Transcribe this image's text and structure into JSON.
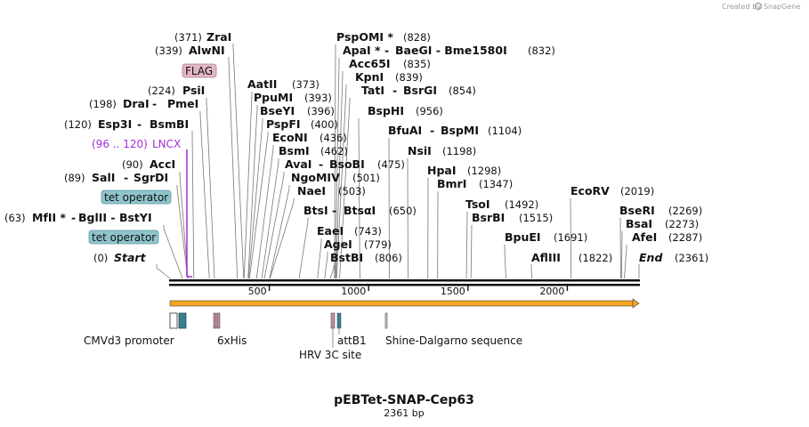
{
  "credit": {
    "created_by": "Created by",
    "brand": "SnapGene"
  },
  "title": "pEBTet-SNAP-Cep63",
  "length_label": "2361 bp",
  "total_bp": 2361,
  "axis_ticks": [
    "500",
    "1000",
    "1500",
    "2000"
  ],
  "colors": {
    "feature_box": "#8fc4cc",
    "flag_box": "#e3b7c4",
    "lncx": "#a12fd4",
    "arrow": "#f6a623",
    "pink": "#c78aa0",
    "teal": "#3c7d8c"
  },
  "sites": [
    {
      "name": "ZraI",
      "pos": "(371)",
      "bp": 371
    },
    {
      "name": "AlwNI",
      "pos": "(339)",
      "bp": 339
    },
    {
      "name": "PsiI",
      "pos": "(224)",
      "bp": 224
    },
    {
      "name": "DraI",
      "extra": "PmeI",
      "pos": "(198)",
      "bp": 198
    },
    {
      "name": "Esp3I",
      "extra": "BsmBI",
      "pos": "(120)",
      "bp": 120
    },
    {
      "name": "AccI",
      "pos": "(90)",
      "bp": 90
    },
    {
      "name": "SalI",
      "extra": "SgrDI",
      "pos": "(89)",
      "bp": 89
    },
    {
      "name": "MfII *",
      "extra": "BglII - BstYI",
      "pos": "(63)",
      "bp": 63
    },
    {
      "name": "Start",
      "pos": "(0)",
      "bp": 0
    },
    {
      "name": "AatII",
      "pos": "(373)",
      "bp": 373
    },
    {
      "name": "PpuMI",
      "pos": "(393)",
      "bp": 393
    },
    {
      "name": "BseYI",
      "pos": "(396)",
      "bp": 396
    },
    {
      "name": "PspFI",
      "pos": "(400)",
      "bp": 400
    },
    {
      "name": "EcoNI",
      "pos": "(436)",
      "bp": 436
    },
    {
      "name": "BsmI",
      "pos": "(462)",
      "bp": 462
    },
    {
      "name": "AvaI",
      "extra": "BsoBI",
      "pos": "(475)",
      "bp": 475
    },
    {
      "name": "NgoMIV",
      "pos": "(501)",
      "bp": 501
    },
    {
      "name": "NaeI",
      "pos": "(503)",
      "bp": 503
    },
    {
      "name": "BtsI",
      "extra": "BtsαI",
      "pos": "(650)",
      "bp": 650
    },
    {
      "name": "EaeI",
      "pos": "(743)",
      "bp": 743
    },
    {
      "name": "AgeI",
      "pos": "(779)",
      "bp": 779
    },
    {
      "name": "BstBI",
      "pos": "(806)",
      "bp": 806
    },
    {
      "name": "PspOMI *",
      "pos": "(828)",
      "bp": 828
    },
    {
      "name": "ApaI *",
      "extra": "BaeGI - Bme1580I",
      "pos": "(832)",
      "bp": 832
    },
    {
      "name": "Acc65I",
      "pos": "(835)",
      "bp": 835
    },
    {
      "name": "KpnI",
      "pos": "(839)",
      "bp": 839
    },
    {
      "name": "TatI",
      "extra": "BsrGI",
      "pos": "(854)",
      "bp": 854
    },
    {
      "name": "BspHI",
      "pos": "(956)",
      "bp": 956
    },
    {
      "name": "BfuAI",
      "extra": "BspMI",
      "pos": "(1104)",
      "bp": 1104
    },
    {
      "name": "NsiI",
      "pos": "(1198)",
      "bp": 1198
    },
    {
      "name": "HpaI",
      "pos": "(1298)",
      "bp": 1298
    },
    {
      "name": "BmrI",
      "pos": "(1347)",
      "bp": 1347
    },
    {
      "name": "TsoI",
      "pos": "(1492)",
      "bp": 1492
    },
    {
      "name": "BsrBI",
      "pos": "(1515)",
      "bp": 1515
    },
    {
      "name": "BpuEI",
      "pos": "(1691)",
      "bp": 1691
    },
    {
      "name": "AflIII",
      "pos": "(1822)",
      "bp": 1822
    },
    {
      "name": "EcoRV",
      "pos": "(2019)",
      "bp": 2019
    },
    {
      "name": "BseRI",
      "pos": "(2269)",
      "bp": 2269
    },
    {
      "name": "BsaI",
      "pos": "(2273)",
      "bp": 2273
    },
    {
      "name": "AfeI",
      "pos": "(2287)",
      "bp": 2287
    },
    {
      "name": "End",
      "pos": "(2361)",
      "bp": 2361
    }
  ],
  "annotations": {
    "flag": "FLAG",
    "lncx_range": "(96 .. 120)",
    "lncx_name": "LNCX",
    "tet_operator_1": "tet operator",
    "tet_operator_2": "tet operator"
  },
  "features": [
    {
      "name": "CMVd3 promoter"
    },
    {
      "name": "6xHis"
    },
    {
      "name": "HRV 3C site"
    },
    {
      "name": "attB1"
    },
    {
      "name": "Shine-Dalgarno sequence"
    }
  ]
}
